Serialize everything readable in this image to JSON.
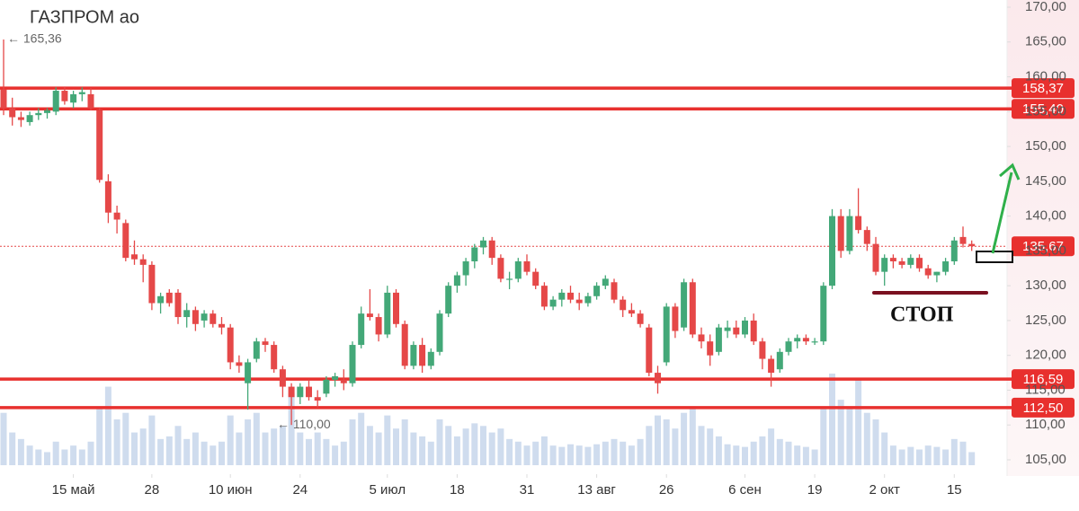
{
  "chart_data": {
    "type": "candlestick",
    "title": "ГАЗПРОМ ао",
    "up_color": "#43a878",
    "down_color": "#e54848",
    "volume_color": "#cfdcee",
    "ylim": [
      105,
      170
    ],
    "yticks": [
      {
        "value": 105,
        "label": "105,00"
      },
      {
        "value": 110,
        "label": "110,00"
      },
      {
        "value": 115,
        "label": "115,00"
      },
      {
        "value": 120,
        "label": "120,00"
      },
      {
        "value": 125,
        "label": "125,00"
      },
      {
        "value": 130,
        "label": "130,00"
      },
      {
        "value": 135,
        "label": "135,00"
      },
      {
        "value": 140,
        "label": "140,00"
      },
      {
        "value": 145,
        "label": "145,00"
      },
      {
        "value": 150,
        "label": "150,00"
      },
      {
        "value": 155,
        "label": "155,00"
      },
      {
        "value": 160,
        "label": "160,00"
      },
      {
        "value": 165,
        "label": "165,00"
      },
      {
        "value": 170,
        "label": "170,00"
      }
    ],
    "xticks": [
      {
        "value": 8,
        "label": "15 май"
      },
      {
        "value": 17,
        "label": "28"
      },
      {
        "value": 26,
        "label": "10 июн"
      },
      {
        "value": 34,
        "label": "24"
      },
      {
        "value": 44,
        "label": "5 июл"
      },
      {
        "value": 52,
        "label": "18"
      },
      {
        "value": 60,
        "label": "31"
      },
      {
        "value": 68,
        "label": "13 авг"
      },
      {
        "value": 76,
        "label": "26"
      },
      {
        "value": 85,
        "label": "6 сен"
      },
      {
        "value": 93,
        "label": "19"
      },
      {
        "value": 101,
        "label": "2 окт"
      },
      {
        "value": 109,
        "label": "15"
      }
    ],
    "open": [
      158.2,
      155.5,
      154.2,
      153.5,
      154.5,
      154.8,
      155,
      158,
      156.3,
      157.5,
      157.5,
      155.2,
      145,
      140.5,
      139,
      134.5,
      133.8,
      133,
      127.5,
      129,
      129,
      125.5,
      126.5,
      125,
      126,
      124.5,
      124,
      119,
      116,
      119.5,
      122,
      121.5,
      118,
      115.5,
      114,
      115.5,
      114,
      114.5,
      116.5,
      116.5,
      116,
      121.5,
      126,
      125.5,
      123,
      129,
      124.5,
      118.5,
      121.5,
      118.5,
      120.5,
      126,
      130,
      131.5,
      133.5,
      135.5,
      136.5,
      134,
      131,
      131,
      133.5,
      132,
      130,
      127,
      128,
      129,
      128,
      127.5,
      128.5,
      130,
      130.5,
      128,
      126.5,
      126,
      124,
      117.5,
      119,
      127,
      124,
      130.5,
      123,
      122,
      120.5,
      123.5,
      124,
      123,
      125,
      122,
      119.5,
      118,
      120.5,
      122,
      122.5,
      122,
      122,
      130,
      140,
      135,
      140,
      138,
      136,
      132,
      134,
      133.5,
      133,
      134,
      132.5,
      131.5,
      132,
      133.5,
      137,
      136
    ],
    "high": [
      165.36,
      157,
      155,
      155,
      155.5,
      155.5,
      158.5,
      158.6,
      158,
      158.5,
      158.4,
      155.5,
      146,
      141.5,
      139.5,
      136.5,
      134.5,
      133.5,
      129,
      129.5,
      129.5,
      127.5,
      127,
      126.5,
      126.5,
      125.5,
      124.5,
      120,
      119.5,
      122.5,
      122.5,
      122,
      118.5,
      116,
      116,
      116.5,
      115,
      117,
      117.5,
      118,
      122,
      127,
      129.5,
      126,
      130,
      129.5,
      125,
      122,
      122.5,
      121,
      126.5,
      130.5,
      132,
      134,
      136,
      137,
      137,
      134.5,
      132,
      134,
      134.5,
      132.5,
      130.5,
      128.5,
      129.5,
      130,
      129,
      129,
      130.5,
      131.5,
      131,
      128.5,
      127.5,
      126.5,
      124.5,
      118.5,
      127.5,
      127.5,
      131,
      131,
      124,
      123,
      124.5,
      125,
      125,
      125.5,
      126,
      122.5,
      120,
      121,
      122.5,
      123,
      123,
      122.5,
      130.5,
      141,
      141,
      141,
      144,
      138.5,
      137,
      134.5,
      134.5,
      134,
      134.5,
      134.5,
      133,
      132,
      134,
      137,
      138.5,
      136.5
    ],
    "low": [
      154.5,
      153,
      152.8,
      153,
      153.8,
      154,
      154.5,
      156,
      155.5,
      156.5,
      155.2,
      144.8,
      139,
      137.5,
      133.5,
      133,
      130.5,
      126.5,
      126,
      127,
      124.5,
      124,
      123.5,
      124,
      124,
      123,
      118,
      117.5,
      112.2,
      119,
      120.5,
      117.5,
      114,
      110,
      113,
      113.5,
      112.5,
      114,
      115.5,
      115,
      115.5,
      121,
      125,
      122,
      122.5,
      124,
      118,
      118,
      117.5,
      118,
      120,
      125.5,
      129,
      130,
      132.5,
      134.5,
      133,
      130.5,
      129.5,
      130.5,
      131.5,
      129.5,
      126.5,
      126.5,
      127,
      127.5,
      126.5,
      127,
      128,
      129.5,
      127.5,
      125.5,
      125.5,
      124,
      117,
      114.5,
      118.5,
      122.5,
      123.5,
      122.5,
      121,
      118.5,
      120,
      122.5,
      122.5,
      122.5,
      121.5,
      118,
      115.5,
      117.5,
      120,
      121,
      121.5,
      121.5,
      121.5,
      129.5,
      134,
      134.5,
      137.5,
      135,
      131.5,
      130,
      132.5,
      132.5,
      132.5,
      132,
      131,
      130.5,
      131.5,
      133,
      135.5,
      135
    ],
    "close": [
      155.5,
      154.2,
      153.8,
      154.5,
      154.8,
      155.2,
      158,
      156.5,
      157.5,
      157.8,
      155.5,
      145.2,
      140.5,
      139.5,
      134,
      133.8,
      133,
      127.5,
      128.5,
      127.5,
      125.5,
      126.5,
      124.5,
      126,
      124.5,
      124,
      119,
      118.5,
      119,
      122,
      121.5,
      118,
      115.5,
      114,
      115.5,
      114,
      113.5,
      116.5,
      117,
      116,
      121.5,
      126,
      125.5,
      123,
      129,
      124.5,
      118.5,
      121.5,
      118.5,
      120.5,
      126,
      130,
      131.5,
      133.5,
      135.5,
      136.5,
      134,
      131,
      131,
      133.5,
      132,
      130,
      127,
      128,
      129,
      128,
      127.5,
      128.5,
      130,
      131,
      128,
      126.5,
      126,
      124.5,
      117.5,
      116,
      127,
      123.5,
      130.5,
      123,
      122,
      120,
      124,
      124,
      123,
      125,
      122,
      119.5,
      117.5,
      120.5,
      122,
      122.5,
      122,
      122,
      130,
      140,
      135,
      140,
      138,
      136,
      132,
      134,
      133.5,
      133,
      134,
      132.5,
      131.5,
      132,
      133.5,
      136.5,
      136,
      135.67
    ],
    "volume": [
      40,
      25,
      20,
      15,
      12,
      10,
      18,
      12,
      15,
      12,
      18,
      45,
      60,
      35,
      40,
      25,
      28,
      38,
      20,
      22,
      30,
      20,
      25,
      18,
      15,
      18,
      38,
      25,
      35,
      40,
      25,
      28,
      30,
      55,
      25,
      20,
      25,
      20,
      15,
      18,
      35,
      40,
      30,
      25,
      38,
      28,
      35,
      25,
      22,
      18,
      35,
      30,
      22,
      28,
      32,
      30,
      25,
      28,
      20,
      18,
      15,
      18,
      22,
      15,
      14,
      16,
      15,
      14,
      16,
      18,
      20,
      18,
      15,
      20,
      30,
      38,
      35,
      28,
      40,
      45,
      30,
      28,
      22,
      16,
      15,
      14,
      18,
      22,
      28,
      20,
      18,
      15,
      14,
      12,
      45,
      70,
      50,
      45,
      65,
      40,
      35,
      25,
      15,
      12,
      14,
      12,
      15,
      14,
      12,
      20,
      18,
      10
    ],
    "levels": [
      {
        "value": 158.37,
        "label": "158,37"
      },
      {
        "value": 155.4,
        "label": "155,40"
      },
      {
        "value": 116.59,
        "label": "116,59"
      },
      {
        "value": 112.5,
        "label": "112,50"
      }
    ],
    "last_price": {
      "value": 135.67,
      "label": "135,67"
    },
    "annotations": [
      {
        "value": 165.36,
        "label": "← 165,36"
      },
      {
        "value": 110.0,
        "label": "← 110,00"
      }
    ],
    "stop_label": "СТОП"
  }
}
